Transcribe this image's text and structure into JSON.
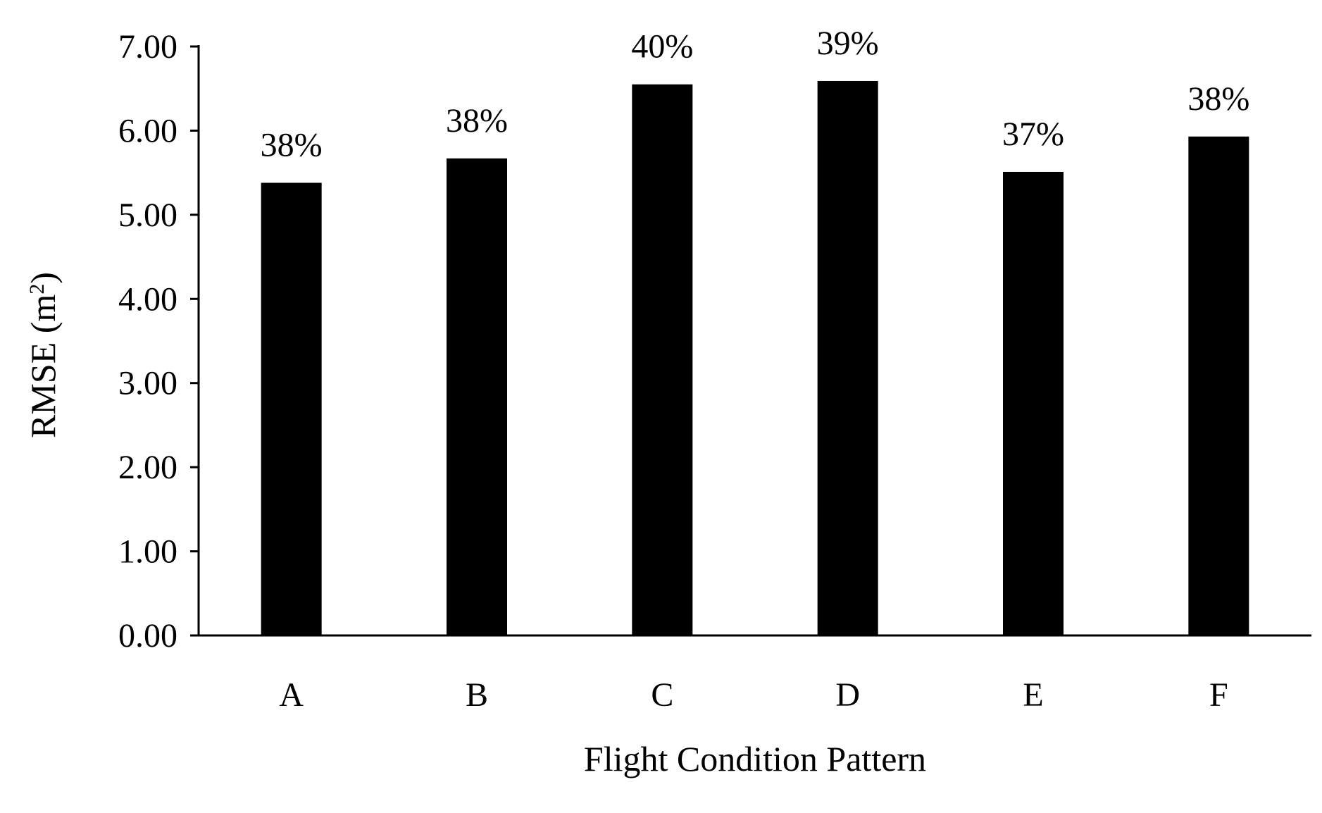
{
  "chart_data": {
    "type": "bar",
    "categories": [
      "A",
      "B",
      "C",
      "D",
      "E",
      "F"
    ],
    "values": [
      5.38,
      5.67,
      6.55,
      6.59,
      5.51,
      5.93
    ],
    "data_labels": [
      "38%",
      "38%",
      "40%",
      "39%",
      "37%",
      "38%"
    ],
    "title": "",
    "xlabel": "Flight Condition Pattern",
    "ylabel": {
      "main": "RMSE (m",
      "superscript": "2",
      "close": ")"
    },
    "ylim": [
      0,
      7
    ],
    "yticks": [
      "0.00",
      "1.00",
      "2.00",
      "3.00",
      "4.00",
      "5.00",
      "6.00",
      "7.00"
    ],
    "grid": false,
    "legend": "none",
    "colors": {
      "bar": "#000000",
      "axis": "#000000",
      "text": "#000000",
      "background": "#ffffff"
    }
  }
}
